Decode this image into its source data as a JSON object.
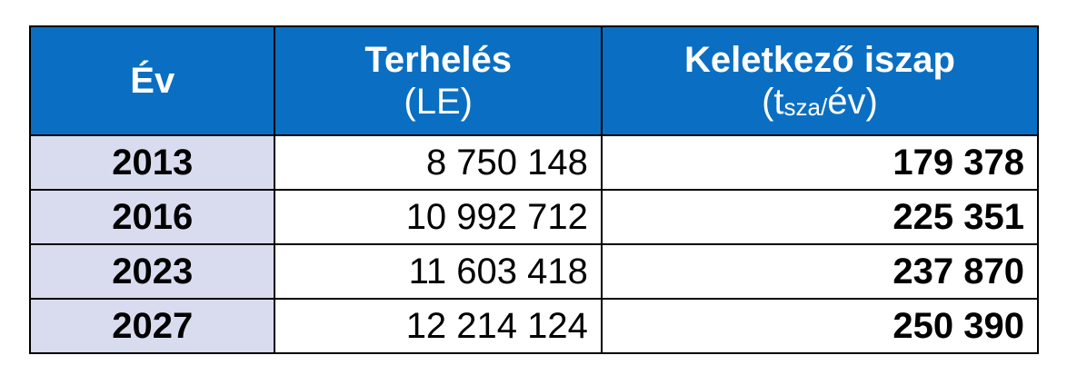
{
  "table": {
    "header": [
      {
        "title": "Év"
      },
      {
        "title": "Terhelés",
        "unit": "(LE)"
      },
      {
        "title": "Keletkező iszap",
        "unit_prefix": "(t",
        "unit_sub": "sza/",
        "unit_suffix": "év)"
      }
    ],
    "rows": [
      [
        "2013",
        "8 750 148",
        "179 378"
      ],
      [
        "2016",
        "10 992 712",
        "225 351"
      ],
      [
        "2023",
        "11 603 418",
        "237 870"
      ],
      [
        "2027",
        "12 214 124",
        "250 390"
      ]
    ]
  }
}
